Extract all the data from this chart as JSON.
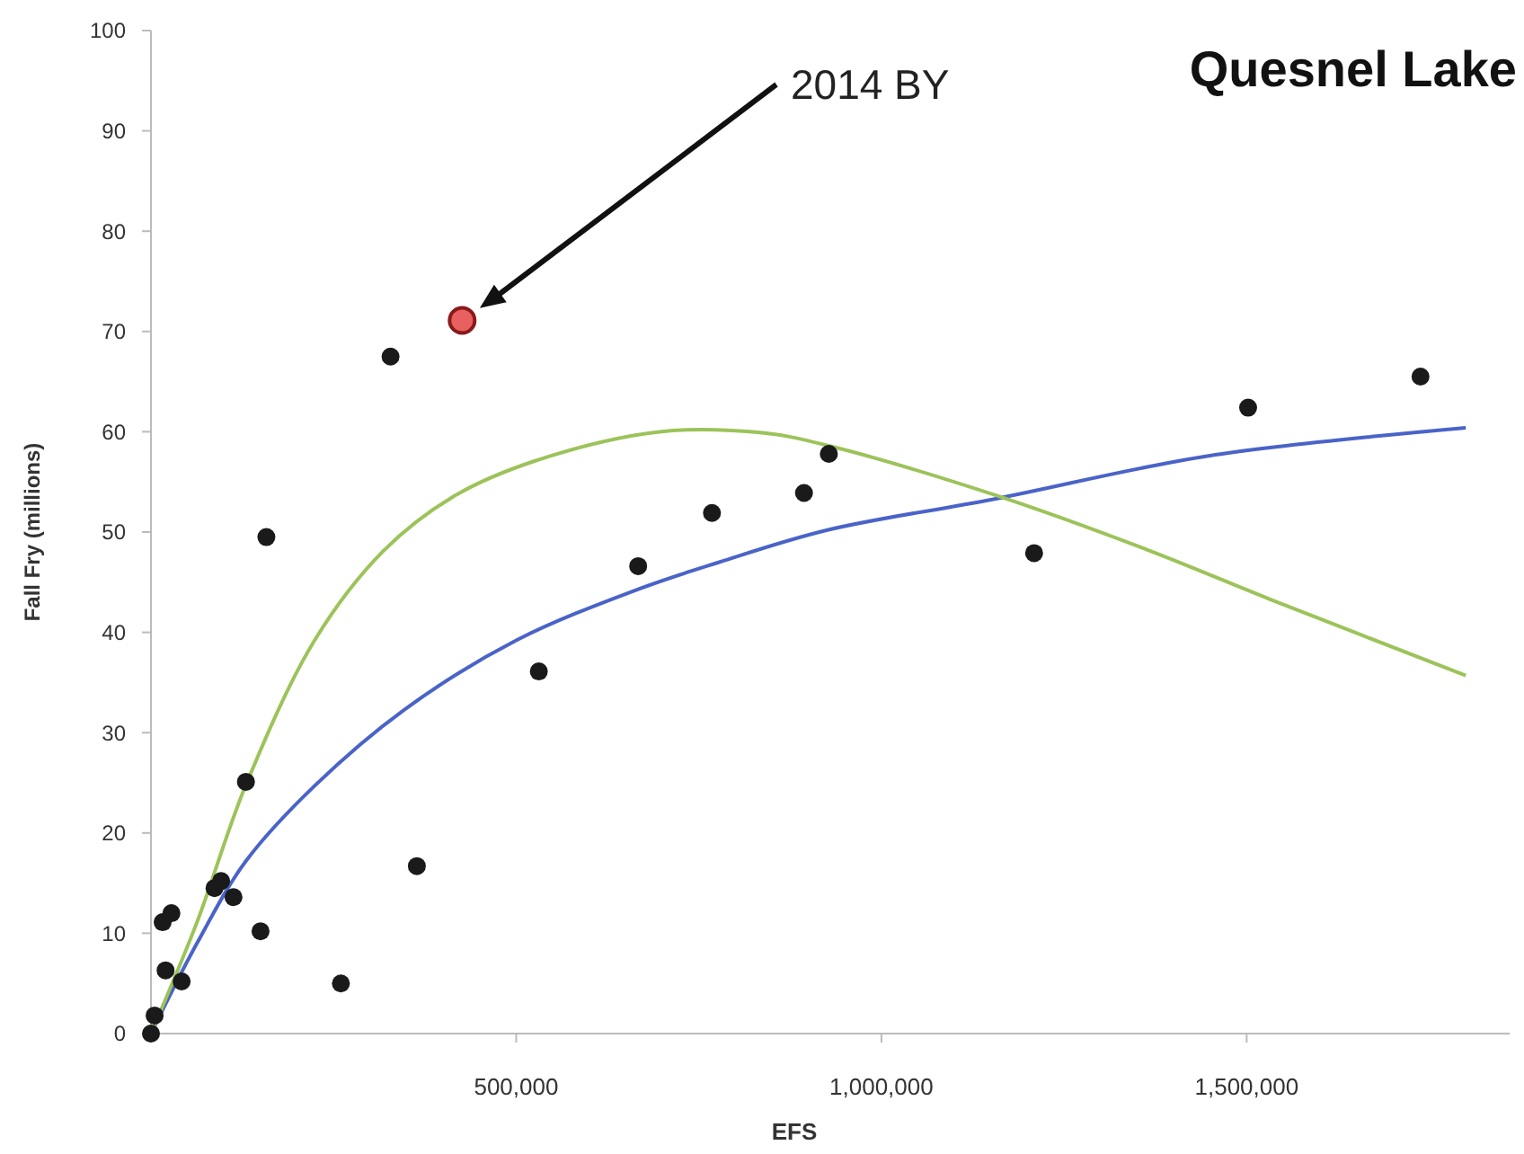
{
  "chart_data": {
    "type": "scatter",
    "title": "Quesnel Lake",
    "xlabel": "EFS",
    "ylabel": "Fall Fry (millions)",
    "xlim": [
      0,
      1860000
    ],
    "ylim": [
      0,
      100
    ],
    "xticks": [
      {
        "value": 0,
        "label": null
      },
      {
        "value": 500000,
        "label": "500,000"
      },
      {
        "value": 1000000,
        "label": "1,000,000"
      },
      {
        "value": 1500000,
        "label": "1,500,000"
      }
    ],
    "yticks": [
      0,
      10,
      20,
      30,
      40,
      50,
      60,
      70,
      80,
      90,
      100
    ],
    "grid": false,
    "annotations": [
      "2014 BY"
    ],
    "series": [
      {
        "type": "line",
        "color": "#4a63c8",
        "x": [
          0,
          63000,
          130000,
          224000,
          347000,
          500000,
          667000,
          778000,
          926000,
          1155000,
          1448000,
          1800000
        ],
        "values": [
          0,
          9.0,
          17.2,
          24.7,
          32.3,
          39.2,
          44.3,
          47.0,
          50.2,
          53.3,
          57.6,
          60.4
        ]
      },
      {
        "type": "line",
        "color": "#9cc35a",
        "x": [
          0,
          63000,
          130000,
          224000,
          318000,
          413000,
          526000,
          696000,
          837000,
          928000,
          1155000,
          1365000,
          1532000,
          1800000
        ],
        "values": [
          0,
          11.1,
          24.8,
          39.2,
          48.1,
          53.5,
          57.1,
          60.0,
          59.9,
          58.6,
          53.7,
          48.2,
          43.3,
          35.7
        ]
      },
      {
        "color": "#1a1a1a",
        "x": [
          0,
          5000,
          16000,
          28000,
          20000,
          42000,
          87000,
          96000,
          113000,
          130000,
          150000,
          158000,
          260000,
          328000,
          364000,
          531000,
          667000,
          768000,
          894000,
          928000,
          1209000,
          1502000,
          1738000
        ],
        "values": [
          0,
          1.8,
          11.1,
          12.0,
          6.3,
          5.2,
          14.5,
          15.2,
          13.6,
          25.1,
          10.2,
          49.5,
          5.0,
          67.5,
          16.7,
          36.1,
          46.6,
          51.9,
          53.9,
          57.8,
          47.9,
          62.4,
          65.5
        ]
      },
      {
        "color": "#e8605f",
        "x": [
          426000
        ],
        "values": [
          71.1
        ]
      }
    ]
  }
}
